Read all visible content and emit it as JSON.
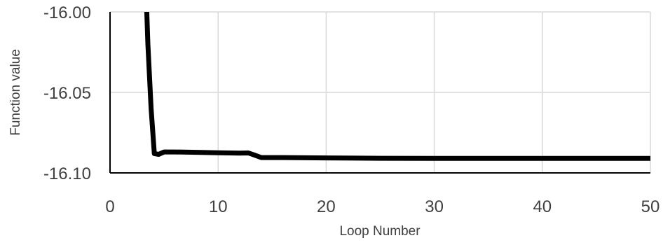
{
  "chart_data": {
    "type": "line",
    "title": "",
    "xlabel": "Loop Number",
    "ylabel": "Function value",
    "xlim": [
      0,
      50
    ],
    "ylim": [
      -16.1,
      -16.0
    ],
    "xticks": [
      0,
      10,
      20,
      30,
      40,
      50
    ],
    "yticks": [
      -16.0,
      -16.05,
      -16.1
    ],
    "xtick_labels": [
      "0",
      "10",
      "20",
      "30",
      "40",
      "50"
    ],
    "ytick_labels": [
      "-16.00",
      "-16.05",
      "-16.10"
    ],
    "grid": true,
    "legend": "none",
    "series": [
      {
        "color": "#000000",
        "x": [
          3.2,
          3.5,
          3.8,
          4.1,
          4.5,
          5.0,
          6,
          8,
          10,
          12,
          12.8,
          13.4,
          14.0,
          14.5,
          16,
          20,
          25,
          30,
          40,
          50
        ],
        "y": [
          -15.96,
          -16.02,
          -16.06,
          -16.088,
          -16.0885,
          -16.087,
          -16.087,
          -16.0872,
          -16.0875,
          -16.0877,
          -16.0876,
          -16.089,
          -16.0905,
          -16.0905,
          -16.0905,
          -16.0907,
          -16.0909,
          -16.091,
          -16.091,
          -16.091
        ]
      }
    ]
  }
}
